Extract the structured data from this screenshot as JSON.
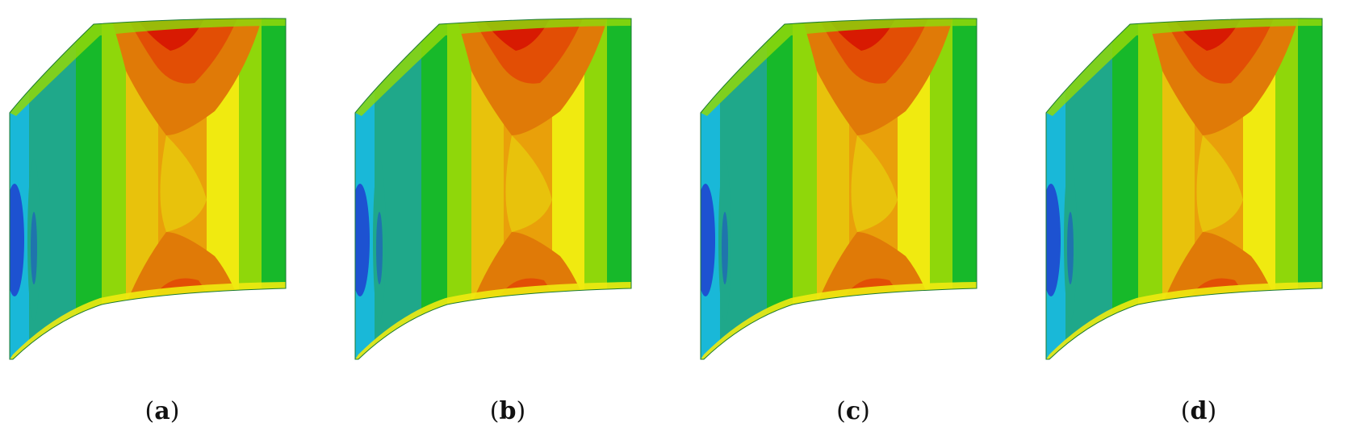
{
  "panels": [
    {
      "label": "a"
    },
    {
      "label": "b"
    },
    {
      "label": "c"
    },
    {
      "label": "d"
    }
  ],
  "colors": {
    "deep_blue": "#1f3fd0",
    "cyan": "#19b8d8",
    "teal": "#1fa88a",
    "green": "#17b92a",
    "lime": "#8fd70a",
    "yellow": "#f0ea10",
    "yellow_orange": "#e8c20c",
    "orange": "#e9a00a",
    "dark_orange": "#e07a07",
    "red_orange": "#e24e05",
    "red": "#d81a02"
  }
}
